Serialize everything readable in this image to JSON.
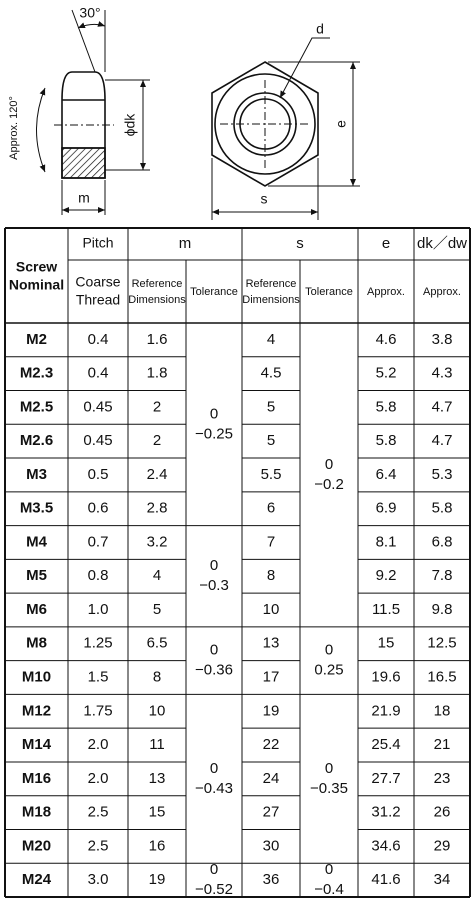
{
  "diagram": {
    "labels": {
      "angle30": "30°",
      "d": "d",
      "dk": "ϕdk",
      "e": "e",
      "approx120": "Approx. 120°",
      "m": "m",
      "s": "s"
    }
  },
  "table": {
    "header": {
      "nominal": [
        "Screw",
        "Nominal"
      ],
      "pitch": "Pitch",
      "m": "m",
      "s": "s",
      "e": "e",
      "dk": "dk／dw",
      "coarse": [
        "Coarse",
        "Thread"
      ],
      "m_ref": [
        "Reference",
        "Dimensions"
      ],
      "m_tol": "Tolerance",
      "s_ref": [
        "Reference",
        "Dimensions"
      ],
      "s_tol": "Tolerance",
      "e_sub": "Approx.",
      "dk_sub": "Approx."
    },
    "rows": [
      [
        "M2",
        "0.4",
        "1.6",
        "4",
        "4.6",
        "3.8"
      ],
      [
        "M2.3",
        "0.4",
        "1.8",
        "4.5",
        "5.2",
        "4.3"
      ],
      [
        "M2.5",
        "0.45",
        "2",
        "5",
        "5.8",
        "4.7"
      ],
      [
        "M2.6",
        "0.45",
        "2",
        "5",
        "5.8",
        "4.7"
      ],
      [
        "M3",
        "0.5",
        "2.4",
        "5.5",
        "6.4",
        "5.3"
      ],
      [
        "M3.5",
        "0.6",
        "2.8",
        "6",
        "6.9",
        "5.8"
      ],
      [
        "M4",
        "0.7",
        "3.2",
        "7",
        "8.1",
        "6.8"
      ],
      [
        "M5",
        "0.8",
        "4",
        "8",
        "9.2",
        "7.8"
      ],
      [
        "M6",
        "1.0",
        "5",
        "10",
        "11.5",
        "9.8"
      ],
      [
        "M8",
        "1.25",
        "6.5",
        "13",
        "15",
        "12.5"
      ],
      [
        "M10",
        "1.5",
        "8",
        "17",
        "19.6",
        "16.5"
      ],
      [
        "M12",
        "1.75",
        "10",
        "19",
        "21.9",
        "18"
      ],
      [
        "M14",
        "2.0",
        "11",
        "22",
        "25.4",
        "21"
      ],
      [
        "M16",
        "2.0",
        "13",
        "24",
        "27.7",
        "23"
      ],
      [
        "M18",
        "2.5",
        "15",
        "27",
        "31.2",
        "26"
      ],
      [
        "M20",
        "2.5",
        "16",
        "30",
        "34.6",
        "29"
      ],
      [
        "M24",
        "3.0",
        "19",
        "36",
        "41.6",
        "34"
      ]
    ],
    "m_tolerances": [
      [
        "0",
        "−0.25"
      ],
      [
        "0",
        "−0.3"
      ],
      [
        "0",
        "−0.36"
      ],
      [
        "0",
        "−0.43"
      ],
      [
        "0",
        "−0.52"
      ]
    ],
    "s_tolerances": [
      [
        "0",
        "−0.2"
      ],
      [
        "0",
        "0.25"
      ],
      [
        "0",
        "−0.35"
      ],
      [
        "0",
        "−0.4"
      ]
    ]
  }
}
